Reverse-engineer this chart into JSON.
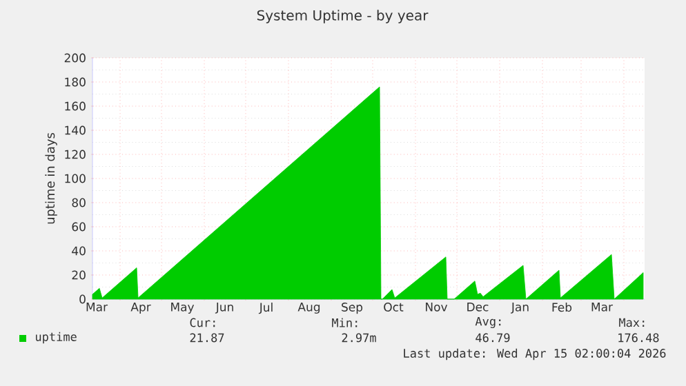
{
  "chart_data": {
    "type": "area",
    "title": "System Uptime - by year",
    "ylabel": "uptime in days",
    "x": [
      "2025-03-12",
      "2025-03-17",
      "2025-03-19",
      "2025-04-13",
      "2025-04-14",
      "2025-10-06",
      "2025-10-07",
      "2025-10-08",
      "2025-10-15",
      "2025-10-17",
      "2025-11-23",
      "2025-11-24",
      "2025-11-29",
      "2025-12-14",
      "2025-12-16",
      "2025-12-18",
      "2025-12-20",
      "2026-01-18",
      "2026-01-20",
      "2026-02-13",
      "2026-02-14",
      "2026-03-23",
      "2026-03-25",
      "2026-04-15"
    ],
    "series": [
      {
        "name": "uptime",
        "color": "#00cc00",
        "values": [
          4,
          9,
          1,
          26,
          1,
          176,
          0,
          0,
          8,
          1,
          35,
          0,
          0,
          15,
          4,
          5,
          2,
          28,
          0,
          24,
          1,
          37,
          0,
          22
        ]
      }
    ],
    "xlim": [
      "2025-03-12",
      "2026-04-16"
    ],
    "xticks": [
      {
        "value": "2025-03-15",
        "label": "Mar"
      },
      {
        "value": "2025-04-01",
        "label": null
      },
      {
        "value": "2025-04-16",
        "label": "Apr"
      },
      {
        "value": "2025-05-01",
        "label": null
      },
      {
        "value": "2025-05-16",
        "label": "May"
      },
      {
        "value": "2025-06-01",
        "label": null
      },
      {
        "value": "2025-06-16",
        "label": "Jun"
      },
      {
        "value": "2025-07-01",
        "label": null
      },
      {
        "value": "2025-07-16",
        "label": "Jul"
      },
      {
        "value": "2025-08-01",
        "label": null
      },
      {
        "value": "2025-08-16",
        "label": "Aug"
      },
      {
        "value": "2025-09-01",
        "label": null
      },
      {
        "value": "2025-09-16",
        "label": "Sep"
      },
      {
        "value": "2025-10-01",
        "label": null
      },
      {
        "value": "2025-10-16",
        "label": "Oct"
      },
      {
        "value": "2025-11-01",
        "label": null
      },
      {
        "value": "2025-11-16",
        "label": "Nov"
      },
      {
        "value": "2025-12-01",
        "label": null
      },
      {
        "value": "2025-12-16",
        "label": "Dec"
      },
      {
        "value": "2026-01-01",
        "label": null
      },
      {
        "value": "2026-01-16",
        "label": "Jan"
      },
      {
        "value": "2026-02-01",
        "label": null
      },
      {
        "value": "2026-02-15",
        "label": "Feb"
      },
      {
        "value": "2026-03-01",
        "label": null
      },
      {
        "value": "2026-03-16",
        "label": "Mar"
      },
      {
        "value": "2026-04-01",
        "label": null
      }
    ],
    "ylim": [
      0,
      200
    ],
    "yticks": [
      0,
      20,
      40,
      60,
      80,
      100,
      120,
      140,
      160,
      180,
      200
    ],
    "grid": true,
    "legend": "bottom",
    "annotations": [
      "Cur:",
      "Min:",
      "Avg:",
      "Max:",
      "21.87",
      "2.97m",
      "46.79",
      "176.48",
      "Last update: Wed Apr 15 02:00:04 2026"
    ]
  }
}
